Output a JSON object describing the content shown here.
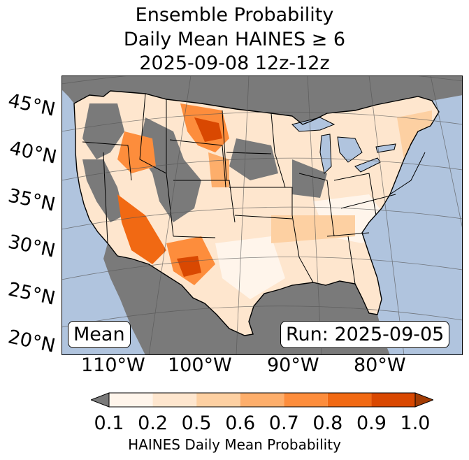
{
  "title": {
    "line1": "Ensemble Probability",
    "line2": "Daily Mean HAINES ≥ 6",
    "line3": "2025-09-08 12z-12z"
  },
  "map": {
    "projection": "lambert-conformal",
    "region": "CONUS",
    "ocean_color": "#b0c4de",
    "no_data_color": "#7a7a7a",
    "lat_labels": [
      "45°N",
      "40°N",
      "35°N",
      "30°N",
      "25°N",
      "20°N"
    ],
    "lon_labels": [
      "110°W",
      "100°W",
      "90°W",
      "80°W"
    ],
    "stat_label": "Mean",
    "run_label": "Run: 2025-09-05"
  },
  "colorbar": {
    "label": "HAINES Daily Mean Probability",
    "ticks": [
      "0.1",
      "0.2",
      "0.5",
      "0.6",
      "0.7",
      "0.8",
      "0.9",
      "1.0"
    ],
    "under_color": "#7a7a7a",
    "over_color": "#a33c04",
    "colors": [
      "#fff5eb",
      "#fee6ce",
      "#fdd0a2",
      "#fdae6b",
      "#fd8d3c",
      "#f16913",
      "#d94801"
    ]
  }
}
